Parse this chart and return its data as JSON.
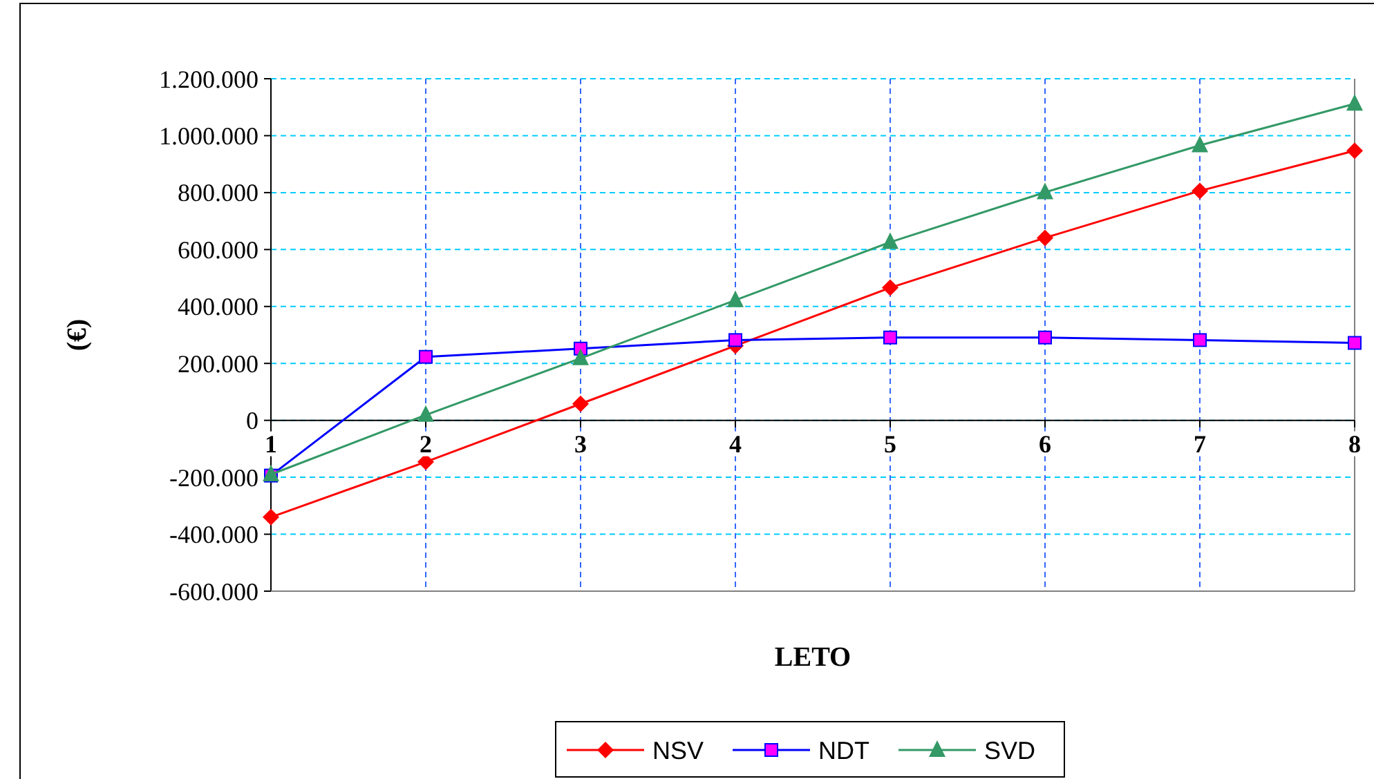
{
  "chart_data": {
    "type": "line",
    "xlabel": "LETO",
    "ylabel": "(€)",
    "categories": [
      "1",
      "2",
      "3",
      "4",
      "5",
      "6",
      "7",
      "8"
    ],
    "series": [
      {
        "name": "NSV",
        "color": "#ff0000",
        "marker": "diamond",
        "values": [
          -340000,
          -146000,
          58000,
          262000,
          466000,
          641000,
          806000,
          947000
        ]
      },
      {
        "name": "NDT",
        "color": "#0000ff",
        "marker": "square",
        "values": [
          -194000,
          223000,
          252000,
          282000,
          291000,
          291000,
          282000,
          272000
        ]
      },
      {
        "name": "SVD",
        "color": "#339966",
        "marker": "triangle",
        "values": [
          -190000,
          19000,
          218000,
          422000,
          626000,
          801000,
          966000,
          1112000
        ]
      }
    ],
    "ylim": [
      -600000,
      1200000
    ],
    "yticks": [
      {
        "value": -600000,
        "label": "-600.000"
      },
      {
        "value": -400000,
        "label": "-400.000"
      },
      {
        "value": -200000,
        "label": "-200.000"
      },
      {
        "value": 0,
        "label": "0"
      },
      {
        "value": 200000,
        "label": "200.000"
      },
      {
        "value": 400000,
        "label": "400.000"
      },
      {
        "value": 600000,
        "label": "600.000"
      },
      {
        "value": 800000,
        "label": "800.000"
      },
      {
        "value": 1000000,
        "label": "1.000.000"
      },
      {
        "value": 1200000,
        "label": "1.200.000"
      }
    ],
    "grid": true,
    "legend": "bottom"
  }
}
